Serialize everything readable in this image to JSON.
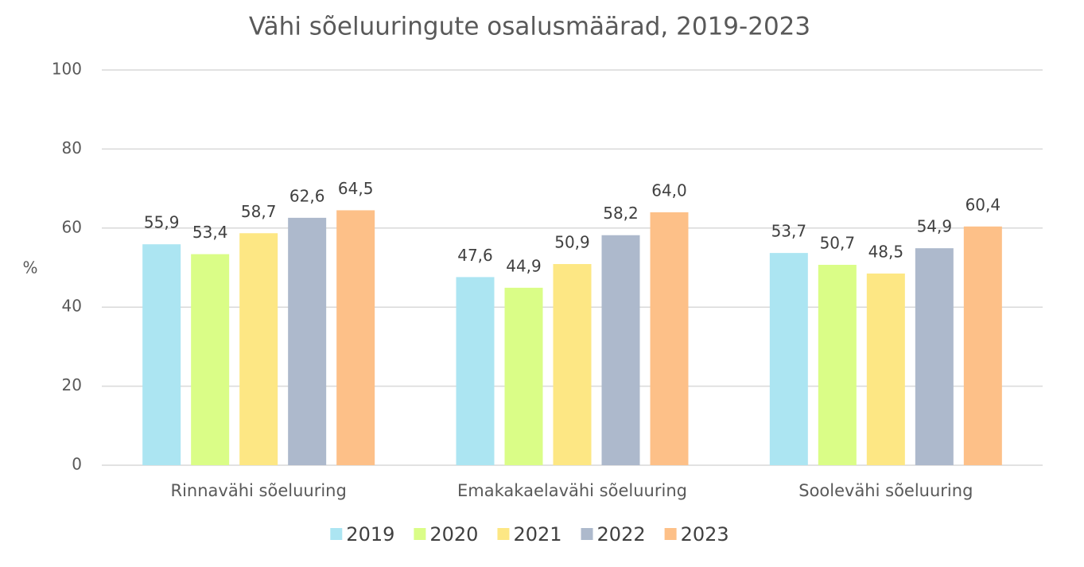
{
  "chart_data": {
    "type": "bar",
    "title": "Vähi sõeluuringute osalusmäärad, 2019-2023",
    "y_label": "%",
    "categories": [
      "Rinnavähi sõeluuring",
      "Emakakaelavähi sõeluuring",
      "Soolevähi sõeluuring"
    ],
    "series": [
      {
        "name": "2019",
        "color": "#ace5f2",
        "values": [
          55.9,
          47.6,
          53.7
        ],
        "value_labels": [
          "55,9",
          "47,6",
          "53,7"
        ]
      },
      {
        "name": "2020",
        "color": "#dafd87",
        "values": [
          53.4,
          44.9,
          50.7
        ],
        "value_labels": [
          "53,4",
          "44,9",
          "50,7"
        ]
      },
      {
        "name": "2021",
        "color": "#fde784",
        "values": [
          58.7,
          50.9,
          48.5
        ],
        "value_labels": [
          "58,7",
          "50,9",
          "48,5"
        ]
      },
      {
        "name": "2022",
        "color": "#adb9cc",
        "values": [
          62.6,
          58.2,
          54.9
        ],
        "value_labels": [
          "62,6",
          "58,2",
          "54,9"
        ]
      },
      {
        "name": "2023",
        "color": "#fdc088",
        "values": [
          64.5,
          64.0,
          60.4
        ],
        "value_labels": [
          "64,5",
          "64,0",
          "60,4"
        ]
      }
    ],
    "ylim": [
      0,
      100
    ],
    "yticks": [
      0,
      20,
      40,
      60,
      80,
      100
    ],
    "grid": true,
    "legend": "bottom"
  }
}
